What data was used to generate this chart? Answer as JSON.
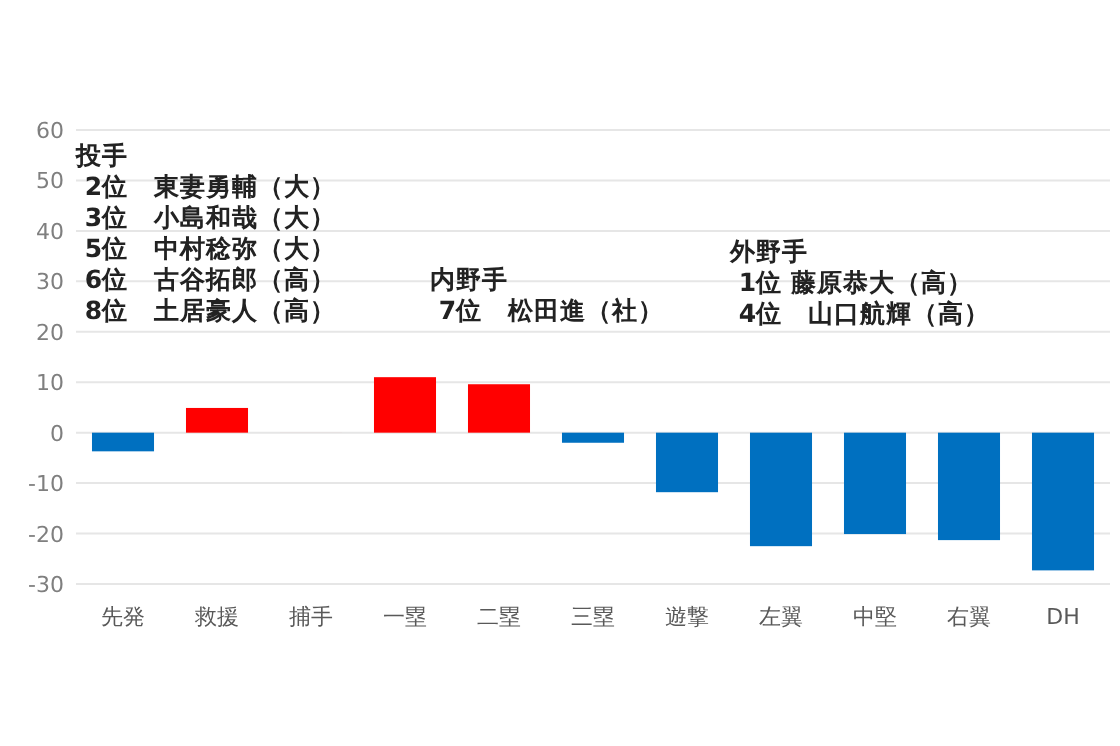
{
  "chart_data": {
    "type": "bar",
    "categories": [
      "先発",
      "救援",
      "捕手",
      "一塁",
      "二塁",
      "三塁",
      "遊撃",
      "左翼",
      "中堅",
      "右翼",
      "DH"
    ],
    "values": [
      -3.7,
      4.9,
      0,
      11.0,
      9.6,
      -2.0,
      -11.8,
      -22.5,
      -20.1,
      -21.3,
      -27.3
    ],
    "colors": [
      "#0070c0",
      "#ff0000",
      "#ff0000",
      "#ff0000",
      "#ff0000",
      "#0070c0",
      "#0070c0",
      "#0070c0",
      "#0070c0",
      "#0070c0",
      "#0070c0"
    ],
    "ylim": [
      -30,
      60
    ],
    "yticks": [
      -30,
      -20,
      -10,
      0,
      10,
      20,
      30,
      40,
      50,
      60
    ],
    "grid": "y",
    "annotations": [
      "投手\n 2位　東妻勇輔（大）\n 3位　小島和哉（大）\n 5位　中村稔弥（大）\n 6位　古谷拓郎（高）\n 8位　土居豪人（高）",
      "内野手\n 7位　松田進（社）",
      "外野手\n 1位  藤原恭大（高）\n 4位　山口航輝（高）"
    ]
  }
}
